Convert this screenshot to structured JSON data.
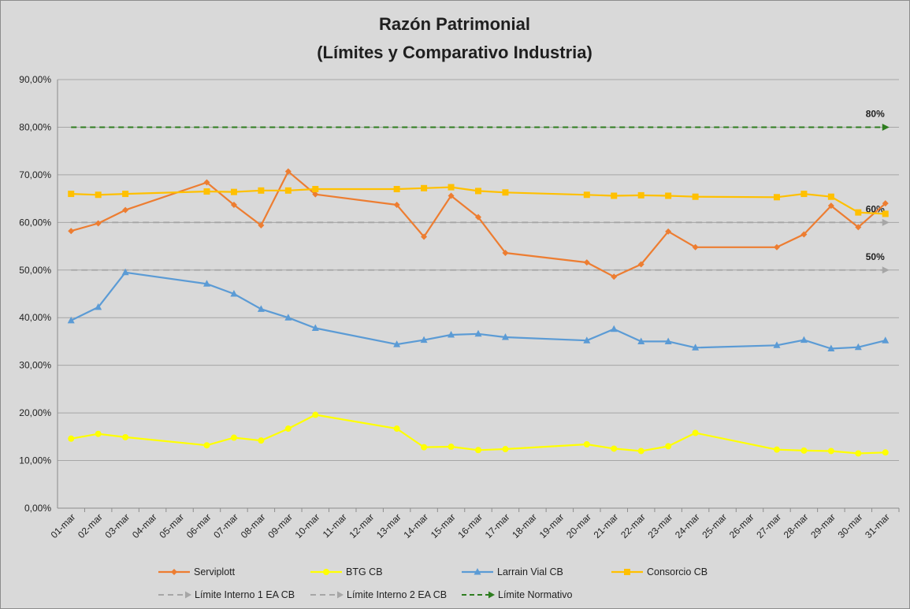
{
  "chart_data": {
    "type": "line",
    "title": "Razón Patrimonial",
    "subtitle": "(Límites y Comparativo Industria)",
    "xlabel": "",
    "ylabel": "",
    "ylim": [
      0,
      90
    ],
    "y_ticks": [
      0,
      10,
      20,
      30,
      40,
      50,
      60,
      70,
      80,
      90
    ],
    "y_tick_labels": [
      "0,00%",
      "10,00%",
      "20,00%",
      "30,00%",
      "40,00%",
      "50,00%",
      "60,00%",
      "70,00%",
      "80,00%",
      "90,00%"
    ],
    "grid": true,
    "categories": [
      "01-mar",
      "02-mar",
      "03-mar",
      "04-mar",
      "05-mar",
      "06-mar",
      "07-mar",
      "08-mar",
      "09-mar",
      "10-mar",
      "11-mar",
      "12-mar",
      "13-mar",
      "14-mar",
      "15-mar",
      "16-mar",
      "17-mar",
      "18-mar",
      "19-mar",
      "20-mar",
      "21-mar",
      "22-mar",
      "23-mar",
      "24-mar",
      "25-mar",
      "26-mar",
      "27-mar",
      "28-mar",
      "29-mar",
      "30-mar",
      "31-mar"
    ],
    "series": [
      {
        "name": "Serviplott",
        "color": "#ed7d31",
        "marker": "diamond",
        "values": [
          58.2,
          59.8,
          62.6,
          null,
          null,
          68.4,
          63.7,
          59.4,
          70.7,
          65.9,
          null,
          null,
          63.7,
          57.0,
          65.6,
          61.1,
          53.6,
          null,
          null,
          51.6,
          48.6,
          51.2,
          58.1,
          54.8,
          null,
          null,
          54.8,
          57.5,
          63.5,
          59.0,
          64.0
        ]
      },
      {
        "name": "BTG CB",
        "color": "#ffff00",
        "marker": "circle",
        "values": [
          14.6,
          15.6,
          14.9,
          null,
          null,
          13.2,
          14.8,
          14.2,
          16.7,
          19.6,
          null,
          null,
          16.7,
          12.8,
          12.9,
          12.2,
          12.4,
          null,
          null,
          13.4,
          12.5,
          12.0,
          13.0,
          15.8,
          null,
          null,
          12.3,
          12.1,
          12.0,
          11.5,
          11.7
        ]
      },
      {
        "name": "Larrain Vial CB",
        "color": "#5b9bd5",
        "marker": "triangle",
        "values": [
          39.4,
          42.2,
          49.5,
          null,
          null,
          47.1,
          45.0,
          41.8,
          40.0,
          37.8,
          null,
          null,
          34.4,
          35.3,
          36.4,
          36.6,
          35.9,
          null,
          null,
          35.2,
          37.6,
          35.0,
          35.0,
          33.7,
          null,
          null,
          34.2,
          35.3,
          33.5,
          33.8,
          35.2
        ]
      },
      {
        "name": "Consorcio CB",
        "color": "#ffc000",
        "marker": "square",
        "values": [
          66.0,
          65.8,
          66.0,
          null,
          null,
          66.5,
          66.4,
          66.7,
          66.7,
          67.0,
          null,
          null,
          67.0,
          67.2,
          67.4,
          66.6,
          66.3,
          null,
          null,
          65.8,
          65.6,
          65.7,
          65.6,
          65.4,
          null,
          null,
          65.3,
          66.0,
          65.4,
          62.1,
          61.8
        ]
      }
    ],
    "reference_lines": [
      {
        "name": "Límite Interno 1 EA CB",
        "value": 60,
        "label": "60%",
        "color": "#a6a6a6"
      },
      {
        "name": "Límite Interno 2 EA CB",
        "value": 50,
        "label": "50%",
        "color": "#a6a6a6"
      },
      {
        "name": "Límite Normativo",
        "value": 80,
        "label": "80%",
        "color": "#2e7d1f"
      }
    ],
    "legend_position": "bottom"
  }
}
